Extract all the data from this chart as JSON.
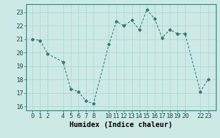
{
  "xlabel": "Humidex (Indice chaleur)",
  "x": [
    0,
    1,
    2,
    4,
    5,
    6,
    7,
    8,
    10,
    11,
    12,
    13,
    14,
    15,
    16,
    17,
    18,
    19,
    20,
    22,
    23
  ],
  "y": [
    21.0,
    20.9,
    19.9,
    19.3,
    17.3,
    17.1,
    16.4,
    16.2,
    20.6,
    22.3,
    22.0,
    22.4,
    21.7,
    23.2,
    22.5,
    21.1,
    21.7,
    21.4,
    21.4,
    17.1,
    18.0
  ],
  "line_color": "#2e7d6e",
  "marker": "D",
  "marker_size": 2,
  "background_color": "#cce9e5",
  "grid_color_major": "#aad4ce",
  "grid_color_minor": "#c2e2de",
  "ylim": [
    15.7,
    23.6
  ],
  "yticks": [
    16,
    17,
    18,
    19,
    20,
    21,
    22,
    23
  ],
  "xticks": [
    0,
    1,
    2,
    4,
    5,
    6,
    7,
    8,
    10,
    11,
    12,
    13,
    14,
    15,
    16,
    17,
    18,
    19,
    20,
    22,
    23
  ],
  "xlabel_fontsize": 7.5,
  "tick_fontsize": 6.5,
  "spine_color": "#2e7d6e",
  "xlim": [
    -0.8,
    24.0
  ]
}
